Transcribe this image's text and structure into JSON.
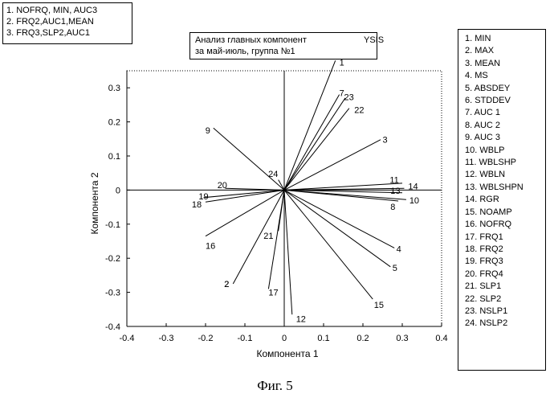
{
  "cluster_legend": [
    "1. NOFRQ, MIN, AUC3",
    "2. FRQ2,AUC1,MEAN",
    "3. FRQ3,SLP2,AUC1"
  ],
  "title_box": {
    "line1": "Анализ главных компонент",
    "tag": "YSIS",
    "line2": "за май-июль, группа №1"
  },
  "variable_list": [
    "1. MIN",
    "2. MAX",
    "3. MEAN",
    "4. MS",
    "5. ABSDEY",
    "6. STDDEV",
    "7. AUC 1",
    "8. AUC 2",
    "9. AUC 3",
    "10. WBLP",
    "11. WBLSHP",
    "12. WBLN",
    "13. WBLSHPN",
    "14. RGR",
    "15. NOAMP",
    "16. NOFRQ",
    "17. FRQ1",
    "18. FRQ2",
    "19. FRQ3",
    "20. FRQ4",
    "21. SLP1",
    "22. SLP2",
    "23. NSLP1",
    "24. NSLP2"
  ],
  "caption": "Фиг. 5",
  "chart_data": {
    "type": "biplot-vectors",
    "xlabel": "Компонента 1",
    "ylabel": "Компонента 2",
    "xlim": [
      -0.4,
      0.4
    ],
    "ylim": [
      -0.4,
      0.35
    ],
    "xticks": [
      "-0.4",
      "-0.3",
      "-0.2",
      "-0.1",
      "0",
      "0.1",
      "0.2",
      "0.3",
      "0.4"
    ],
    "yticks": [
      "-0.4",
      "-0.3",
      "-0.2",
      "-0.1",
      "0",
      "0.1",
      "0.2",
      "0.3"
    ],
    "vectors": [
      {
        "label": "1",
        "x": 0.13,
        "y": 0.38
      },
      {
        "label": "2",
        "x": -0.13,
        "y": -0.275
      },
      {
        "label": "3",
        "x": 0.245,
        "y": 0.148
      },
      {
        "label": "4",
        "x": 0.28,
        "y": -0.17
      },
      {
        "label": "5",
        "x": 0.27,
        "y": -0.225
      },
      {
        "label": "7",
        "x": 0.14,
        "y": 0.28
      },
      {
        "label": "8",
        "x": 0.29,
        "y": -0.032
      },
      {
        "label": "9",
        "x": -0.18,
        "y": 0.182
      },
      {
        "label": "10",
        "x": 0.31,
        "y": -0.028
      },
      {
        "label": "11",
        "x": 0.3,
        "y": 0.02
      },
      {
        "label": "12",
        "x": 0.02,
        "y": -0.365
      },
      {
        "label": "13",
        "x": 0.3,
        "y": -0.008
      },
      {
        "label": "14",
        "x": 0.305,
        "y": 0.005
      },
      {
        "label": "15",
        "x": 0.225,
        "y": -0.32
      },
      {
        "label": "16",
        "x": -0.2,
        "y": -0.135
      },
      {
        "label": "17",
        "x": -0.04,
        "y": -0.29
      },
      {
        "label": "18",
        "x": -0.2,
        "y": -0.035
      },
      {
        "label": "19",
        "x": -0.205,
        "y": -0.022
      },
      {
        "label": "20",
        "x": -0.15,
        "y": 0.005
      },
      {
        "label": "21",
        "x": -0.015,
        "y": -0.12
      },
      {
        "label": "22",
        "x": 0.165,
        "y": 0.24
      },
      {
        "label": "23",
        "x": 0.155,
        "y": 0.27
      },
      {
        "label": "24",
        "x": -0.015,
        "y": 0.03
      }
    ],
    "label_positions": [
      {
        "label": "1",
        "x": 0.14,
        "y": 0.375,
        "anchor": "start"
      },
      {
        "label": "2",
        "x": -0.14,
        "y": -0.275,
        "anchor": "end"
      },
      {
        "label": "3",
        "x": 0.25,
        "y": 0.148,
        "anchor": "start"
      },
      {
        "label": "4",
        "x": 0.285,
        "y": -0.172,
        "anchor": "start"
      },
      {
        "label": "5",
        "x": 0.275,
        "y": -0.228,
        "anchor": "start"
      },
      {
        "label": "7",
        "x": 0.14,
        "y": 0.285,
        "anchor": "start"
      },
      {
        "label": "23",
        "x": 0.152,
        "y": 0.273,
        "anchor": "start"
      },
      {
        "label": "22",
        "x": 0.178,
        "y": 0.236,
        "anchor": "start"
      },
      {
        "label": "9",
        "x": -0.188,
        "y": 0.176,
        "anchor": "end"
      },
      {
        "label": "24",
        "x": -0.028,
        "y": 0.048,
        "anchor": "middle"
      },
      {
        "label": "11",
        "x": 0.268,
        "y": 0.03,
        "anchor": "start"
      },
      {
        "label": "14",
        "x": 0.315,
        "y": 0.012,
        "anchor": "start"
      },
      {
        "label": "13",
        "x": 0.27,
        "y": -0.002,
        "anchor": "start"
      },
      {
        "label": "10",
        "x": 0.318,
        "y": -0.03,
        "anchor": "start"
      },
      {
        "label": "8",
        "x": 0.27,
        "y": -0.048,
        "anchor": "start"
      },
      {
        "label": "20",
        "x": -0.145,
        "y": 0.015,
        "anchor": "end"
      },
      {
        "label": "19",
        "x": -0.205,
        "y": -0.018,
        "anchor": "middle"
      },
      {
        "label": "18",
        "x": -0.21,
        "y": -0.042,
        "anchor": "end"
      },
      {
        "label": "16",
        "x": -0.2,
        "y": -0.163,
        "anchor": "start"
      },
      {
        "label": "21",
        "x": -0.04,
        "y": -0.134,
        "anchor": "middle"
      },
      {
        "label": "2",
        "x": -0.14,
        "y": -0.275,
        "anchor": "end"
      },
      {
        "label": "17",
        "x": -0.04,
        "y": -0.3,
        "anchor": "start"
      },
      {
        "label": "15",
        "x": 0.228,
        "y": -0.336,
        "anchor": "start"
      },
      {
        "label": "12",
        "x": 0.03,
        "y": -0.378,
        "anchor": "start"
      }
    ]
  }
}
